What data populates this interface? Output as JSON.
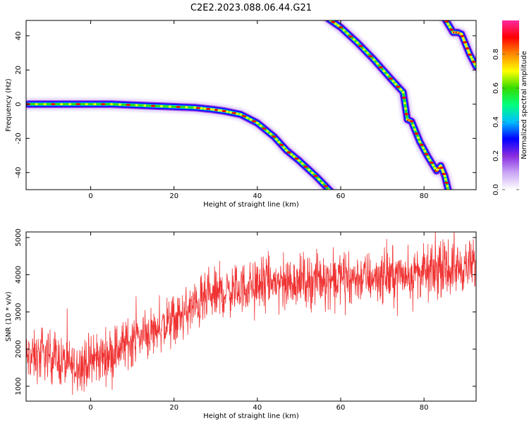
{
  "figure": {
    "title": "C2E2.2023.088.06.44.G21"
  },
  "colors": {
    "snr_line": "#f03232",
    "frame": "#000000"
  },
  "chart_data": [
    {
      "type": "heatmap",
      "xlabel": "Height of straight line (km)",
      "ylabel": "Frequency (Hz)",
      "xlim": [
        -15.5,
        92.5
      ],
      "ylim": [
        -50,
        49
      ],
      "xticks": [
        0,
        20,
        40,
        60,
        80
      ],
      "yticks": [
        -40,
        -20,
        0,
        20,
        40
      ],
      "grid": false,
      "traces": [
        {
          "x": [
            -15,
            -5,
            5,
            15,
            25,
            29,
            32,
            36,
            40,
            44,
            47,
            50,
            54,
            58
          ],
          "y": [
            0,
            0,
            0,
            -1,
            -2,
            -3,
            -4,
            -6,
            -11,
            -19,
            -27,
            -33,
            -42,
            -52
          ]
        },
        {
          "x": [
            57,
            60,
            64,
            68,
            72,
            75,
            76,
            77,
            79,
            81,
            83,
            84,
            85,
            86
          ],
          "y": [
            50,
            45,
            36,
            26,
            15,
            7,
            -9,
            -10,
            -22,
            -31,
            -39,
            -36,
            -42,
            -52
          ]
        },
        {
          "x": [
            85,
            87,
            88,
            89,
            90,
            91,
            92.5
          ],
          "y": [
            50,
            42,
            42,
            41,
            35,
            29,
            22
          ]
        }
      ],
      "colorbar": {
        "label": "Normalized spectral amplitude",
        "range": [
          0,
          1
        ],
        "ticks": [
          0.0,
          0.2,
          0.4,
          0.6,
          0.8
        ],
        "tick_labels": [
          "0.0",
          "0.2",
          "0.4",
          "0.6",
          "0.8"
        ],
        "colormap": [
          "#ffffff",
          "#c9a6f5",
          "#8a2be2",
          "#0000ff",
          "#00bfff",
          "#00ff7f",
          "#33dd00",
          "#ffff00",
          "#ff8c00",
          "#ff0000",
          "#ff2aa0"
        ]
      }
    },
    {
      "type": "line",
      "xlabel": "Height of straight line (km)",
      "ylabel": "SNR (10 * v/v)",
      "xlim": [
        -15.5,
        92.5
      ],
      "ylim": [
        600,
        5150
      ],
      "xticks": [
        0,
        20,
        40,
        60,
        80
      ],
      "yticks": [
        1000,
        2000,
        3000,
        4000,
        5000
      ],
      "grid": false,
      "series": [
        {
          "trend_x": [
            -15,
            -10,
            -5,
            0,
            5,
            10,
            15,
            20,
            25,
            30,
            40,
            50,
            60,
            70,
            80,
            92
          ],
          "trend_y": [
            1750,
            1850,
            1550,
            1650,
            1900,
            2250,
            2500,
            2750,
            3150,
            3450,
            3750,
            3850,
            3900,
            3950,
            4050,
            4250
          ],
          "band": 330
        }
      ]
    }
  ]
}
